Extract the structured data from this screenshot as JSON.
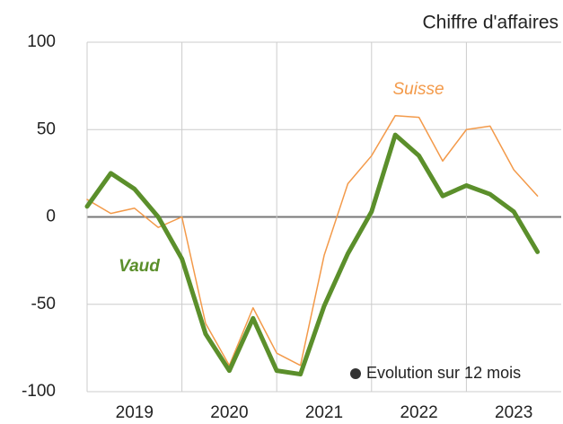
{
  "chart_data": {
    "type": "line",
    "title": "Chiffre d'affaires",
    "x": [
      2019.0,
      2019.25,
      2019.5,
      2019.75,
      2020.0,
      2020.25,
      2020.5,
      2020.75,
      2021.0,
      2021.25,
      2021.5,
      2021.75,
      2022.0,
      2022.25,
      2022.5,
      2022.75,
      2023.0,
      2023.25,
      2023.5,
      2023.75
    ],
    "series": [
      {
        "name": "Suisse",
        "color": "#f39a4a",
        "width": 1.5,
        "values": [
          10,
          2,
          5,
          -6,
          0,
          -61,
          -85,
          -52,
          -78,
          -85,
          -22,
          19,
          35,
          58,
          57,
          32,
          50,
          52,
          27,
          12
        ]
      },
      {
        "name": "Vaud",
        "color": "#5b8f2b",
        "width": 5,
        "values": [
          6,
          25,
          16,
          0,
          -24,
          -67,
          -88,
          -58,
          -88,
          -90,
          -51,
          -21,
          3,
          47,
          35,
          12,
          18,
          13,
          3,
          -20
        ]
      }
    ],
    "xlim": [
      2019.0,
      2024.0
    ],
    "xticks": [
      {
        "value": 2019.5,
        "label": "2019"
      },
      {
        "value": 2020.5,
        "label": "2020"
      },
      {
        "value": 2021.5,
        "label": "2021"
      },
      {
        "value": 2022.5,
        "label": "2022"
      },
      {
        "value": 2023.5,
        "label": "2023"
      }
    ],
    "xgrid": [
      2019,
      2020,
      2021,
      2022,
      2023
    ],
    "ylim": [
      -100,
      100
    ],
    "yticks": [
      100,
      50,
      0,
      -50,
      -100
    ],
    "grid": true,
    "legend_note": "Evolution sur 12 mois"
  }
}
